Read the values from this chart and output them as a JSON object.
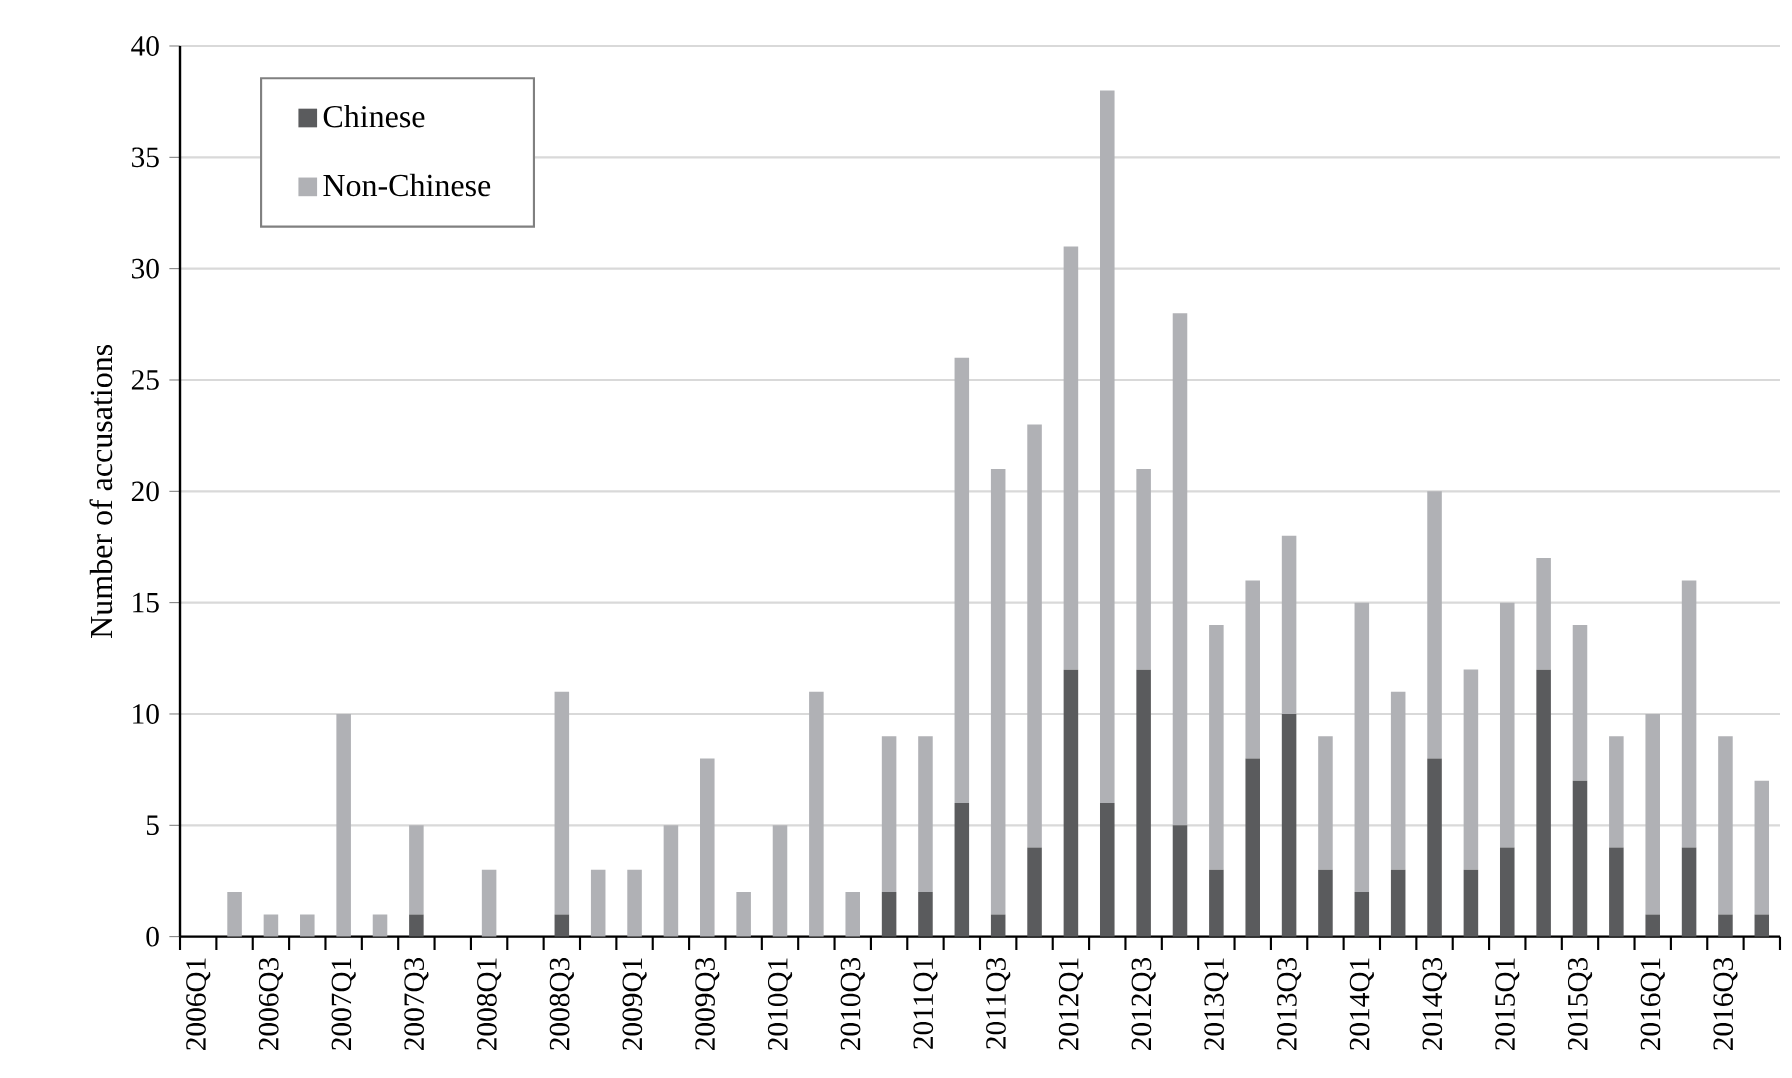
{
  "chart_data": {
    "type": "bar",
    "stacked": true,
    "ylabel": "Number of accusations",
    "categories": [
      "2006Q1",
      null,
      "2006Q3",
      null,
      "2007Q1",
      null,
      "2007Q3",
      null,
      "2008Q1",
      null,
      "2008Q3",
      null,
      "2009Q1",
      null,
      "2009Q3",
      null,
      "2010Q1",
      null,
      "2010Q3",
      null,
      "2011Q1",
      null,
      "2011Q3",
      null,
      "2012Q1",
      null,
      "2012Q3",
      null,
      "2013Q1",
      null,
      "2013Q3",
      null,
      "2014Q1",
      null,
      "2014Q3",
      null,
      "2015Q1",
      null,
      "2015Q3",
      null,
      "2016Q1",
      null,
      "2016Q3",
      null
    ],
    "series": [
      {
        "name": "Chinese",
        "color": "#5a5b5d",
        "values": [
          0,
          0,
          0,
          0,
          0,
          0,
          1,
          0,
          0,
          0,
          1,
          0,
          0,
          0,
          0,
          0,
          0,
          0,
          0,
          2,
          2,
          6,
          1,
          4,
          12,
          6,
          12,
          5,
          3,
          8,
          10,
          3,
          2,
          3,
          8,
          3,
          4,
          12,
          7,
          4,
          1,
          4,
          1,
          1
        ]
      },
      {
        "name": "Non-Chinese",
        "color": "#b0b1b5",
        "values": [
          0,
          2,
          1,
          1,
          10,
          1,
          4,
          0,
          3,
          0,
          10,
          3,
          3,
          5,
          8,
          2,
          5,
          11,
          2,
          7,
          7,
          20,
          20,
          19,
          19,
          32,
          9,
          23,
          11,
          8,
          8,
          6,
          13,
          8,
          12,
          9,
          11,
          5,
          7,
          5,
          9,
          12,
          8,
          6
        ]
      }
    ],
    "ylim": [
      0,
      40
    ],
    "yticks": [
      0,
      5,
      10,
      15,
      20,
      25,
      30,
      35,
      40
    ],
    "grid": "y",
    "legend": "top left"
  }
}
